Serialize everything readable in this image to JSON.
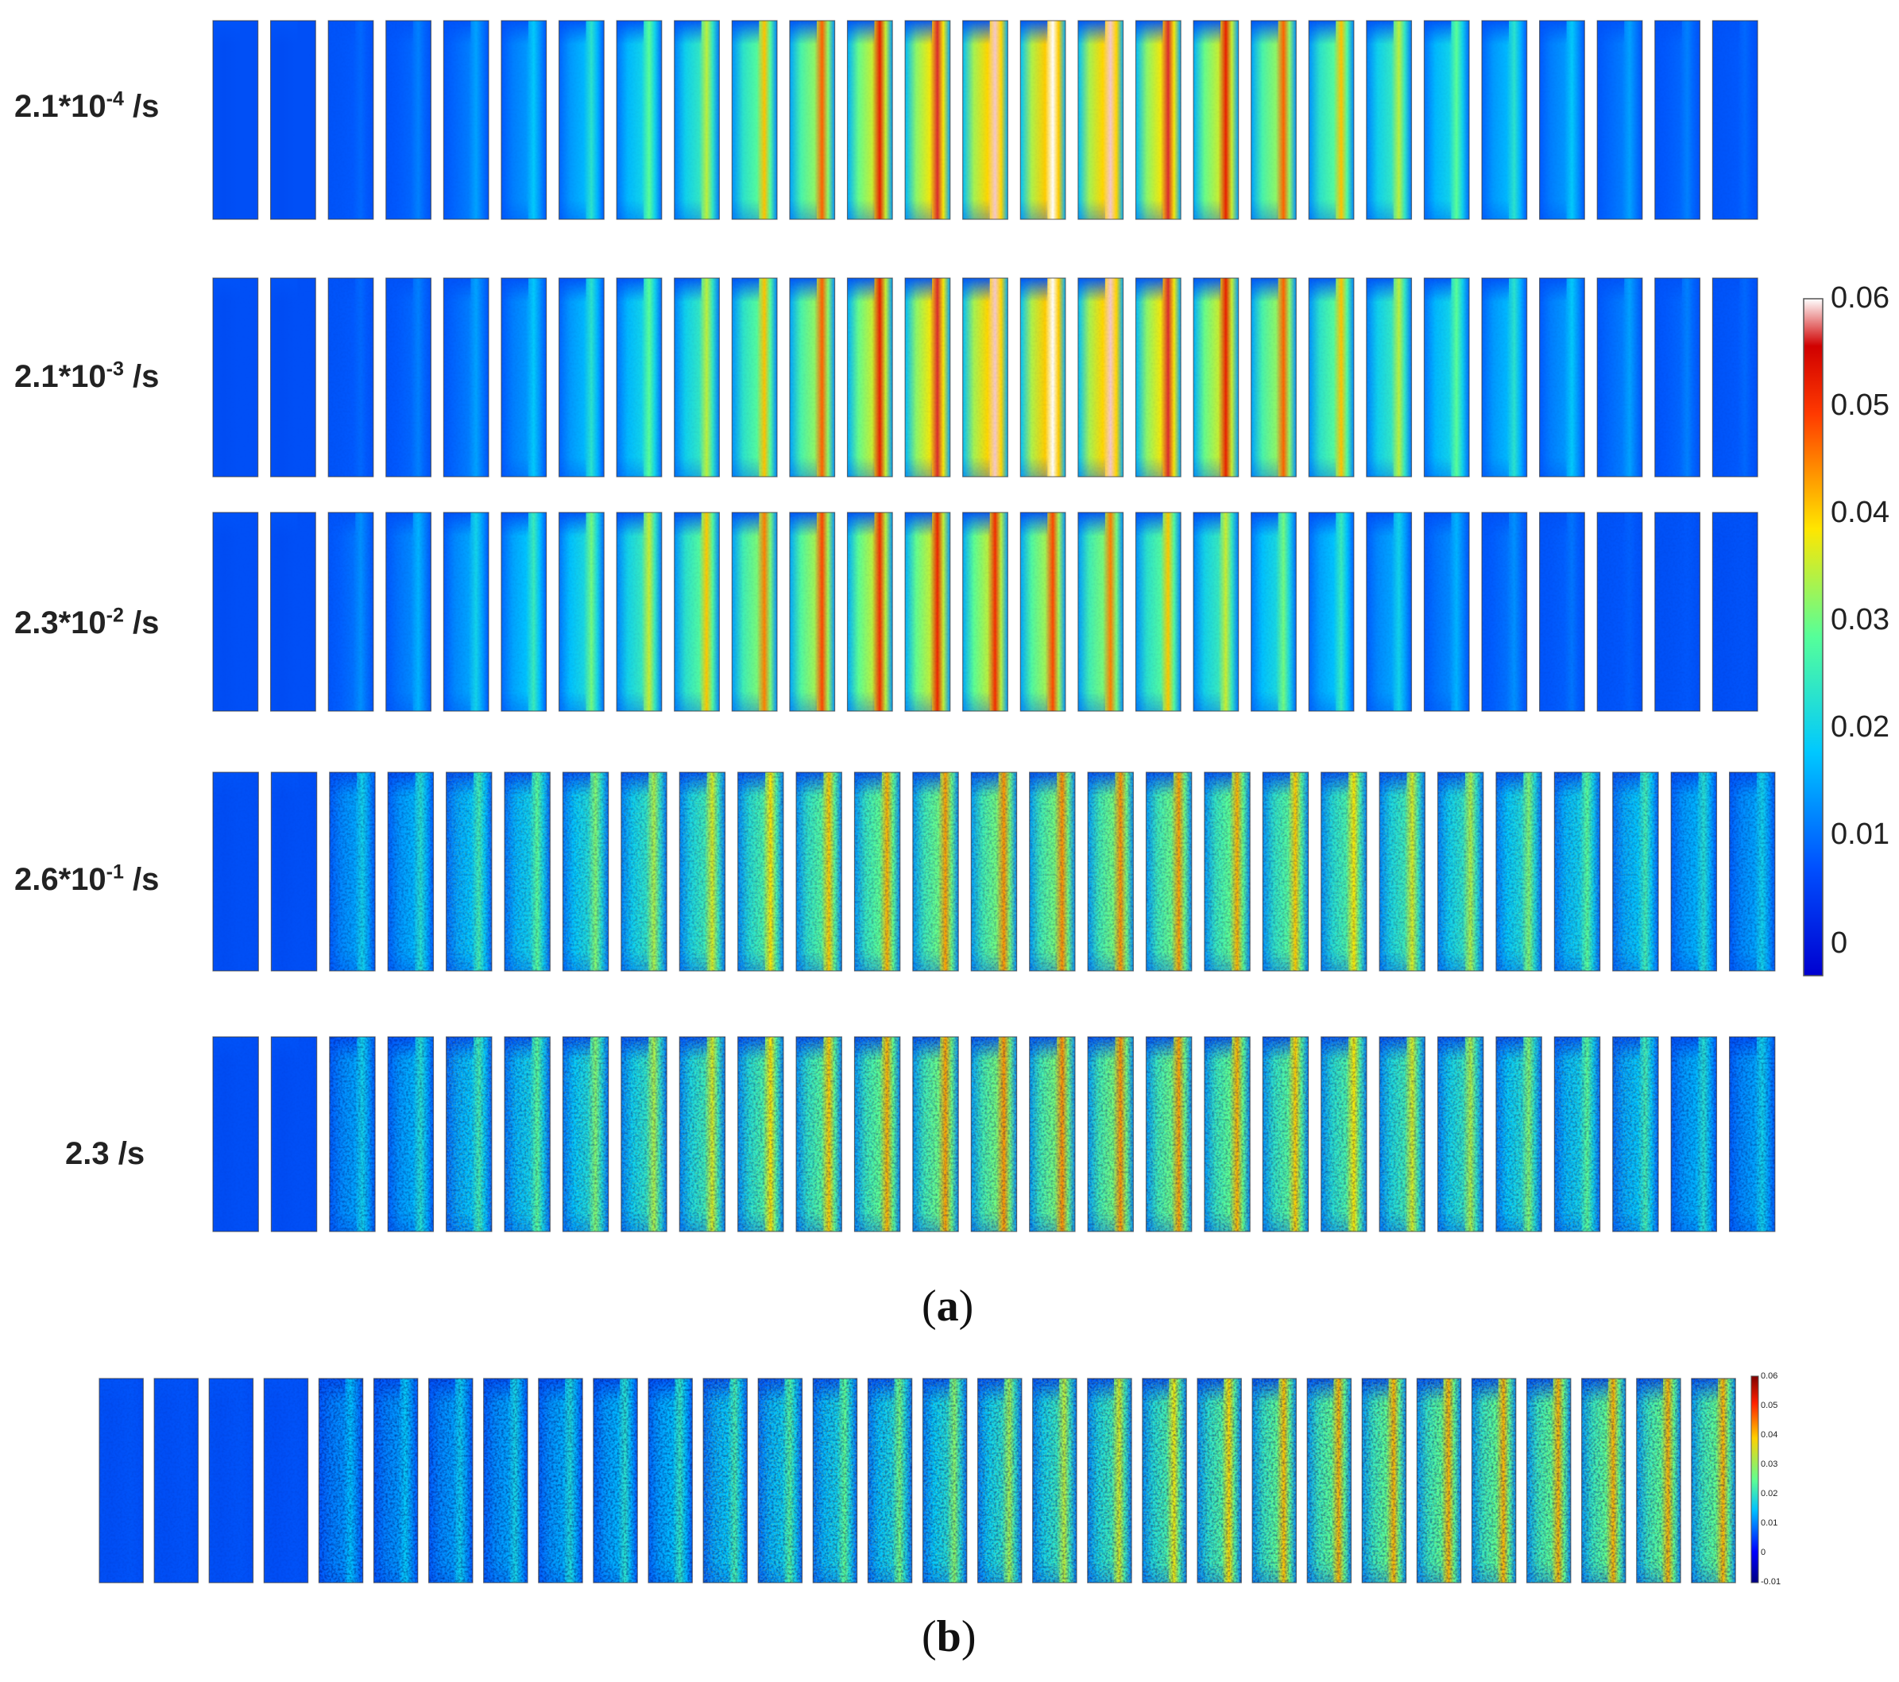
{
  "panel_a": {
    "label": "a",
    "rows": [
      {
        "rate_base": "2.1*10",
        "rate_exp": "-4",
        "rate_unit": " /s",
        "peak_strain": 0.06,
        "peak_frame": 14,
        "noise": 0.05
      },
      {
        "rate_base": "2.1*10",
        "rate_exp": "-3",
        "rate_unit": " /s",
        "peak_strain": 0.06,
        "peak_frame": 14,
        "noise": 0.08
      },
      {
        "rate_base": "2.3*10",
        "rate_exp": "-2",
        "rate_unit": " /s",
        "peak_strain": 0.052,
        "peak_frame": 12,
        "noise": 0.1
      },
      {
        "rate_base": "2.6*10",
        "rate_exp": "-1",
        "rate_unit": " /s",
        "peak_strain": 0.045,
        "peak_frame": 14,
        "noise": 0.55
      },
      {
        "rate_base": "2.3",
        "rate_exp": "",
        "rate_unit": " /s",
        "peak_strain": 0.045,
        "peak_frame": 14,
        "noise": 0.7
      }
    ],
    "frames_per_row": 27,
    "colorbar": {
      "min": 0,
      "max": 0.06,
      "ticks": [
        "0.06",
        "0.05",
        "0.04",
        "0.03",
        "0.02",
        "0.01",
        "0"
      ]
    }
  },
  "panel_b": {
    "label": "b",
    "frames": 30,
    "peak_strain": 0.05,
    "colorbar": {
      "min": -0.01,
      "max": 0.06,
      "ticks": [
        "0.06",
        "0.05",
        "0.04",
        "0.03",
        "0.02",
        "0.01",
        "0",
        "-0.01"
      ]
    }
  }
}
